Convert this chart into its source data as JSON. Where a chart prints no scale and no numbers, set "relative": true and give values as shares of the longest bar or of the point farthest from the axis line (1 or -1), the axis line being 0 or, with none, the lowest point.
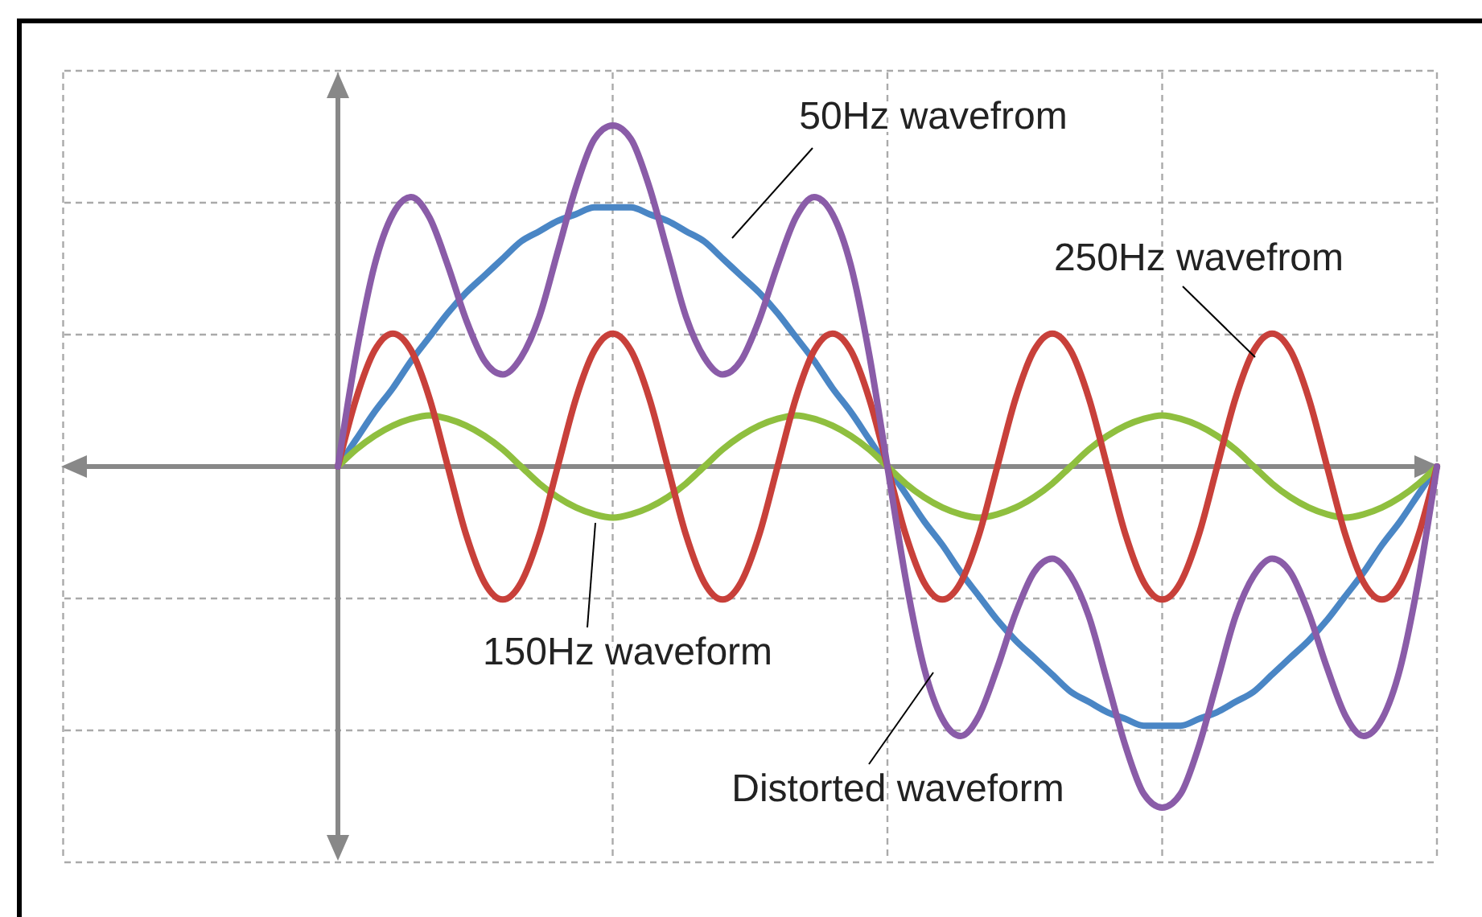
{
  "chart_data": {
    "type": "line",
    "relative": true,
    "grid": true,
    "marker": "none",
    "line_style": "solid",
    "categories": [
      null,
      null,
      null,
      null,
      null,
      null,
      null,
      null,
      null,
      null,
      null,
      null,
      null,
      null,
      null,
      null,
      null,
      null,
      null,
      null,
      null,
      null,
      null,
      null,
      null,
      null,
      null,
      null,
      null,
      null,
      null,
      null,
      null,
      null,
      null,
      null,
      null,
      null,
      null,
      null,
      null,
      null,
      null,
      null,
      null,
      null,
      null,
      null,
      null,
      null,
      null,
      null,
      null,
      null,
      null,
      null,
      null,
      null,
      null,
      null,
      null
    ],
    "series": [
      {
        "name": "50Hz wavefrom",
        "color": "#4a86c5",
        "values": [
          0,
          0.08,
          0.16,
          0.23,
          0.31,
          0.38,
          0.45,
          0.51,
          0.56,
          0.61,
          0.66,
          0.69,
          0.72,
          0.74,
          0.76,
          0.76,
          0.76,
          0.74,
          0.72,
          0.69,
          0.66,
          0.61,
          0.56,
          0.51,
          0.45,
          0.38,
          0.31,
          0.23,
          0.16,
          0.08,
          0,
          -0.08,
          -0.16,
          -0.23,
          -0.31,
          -0.38,
          -0.45,
          -0.51,
          -0.56,
          -0.61,
          -0.66,
          -0.69,
          -0.72,
          -0.74,
          -0.76,
          -0.76,
          -0.76,
          -0.74,
          -0.72,
          -0.69,
          -0.66,
          -0.61,
          -0.56,
          -0.51,
          -0.45,
          -0.38,
          -0.31,
          -0.23,
          -0.16,
          -0.08,
          0
        ]
      },
      {
        "name": "150Hz waveform",
        "color": "#8fbf3f",
        "values": [
          0,
          0.05,
          0.09,
          0.12,
          0.14,
          0.15,
          0.14,
          0.12,
          0.09,
          0.05,
          0,
          -0.05,
          -0.09,
          -0.12,
          -0.14,
          -0.15,
          -0.14,
          -0.12,
          -0.09,
          -0.05,
          0,
          0.05,
          0.09,
          0.12,
          0.14,
          0.15,
          0.14,
          0.12,
          0.09,
          0.05,
          0,
          -0.05,
          -0.09,
          -0.12,
          -0.14,
          -0.15,
          -0.14,
          -0.12,
          -0.09,
          -0.05,
          0,
          0.05,
          0.09,
          0.12,
          0.14,
          0.15,
          0.14,
          0.12,
          0.09,
          0.05,
          0,
          -0.05,
          -0.09,
          -0.12,
          -0.14,
          -0.15,
          -0.14,
          -0.12,
          -0.09,
          -0.05,
          0
        ]
      },
      {
        "name": "250Hz wavefrom",
        "color": "#c8403a",
        "values": [
          0,
          0.2,
          0.34,
          0.39,
          0.34,
          0.2,
          0,
          -0.2,
          -0.34,
          -0.39,
          -0.34,
          -0.2,
          0,
          0.2,
          0.34,
          0.39,
          0.34,
          0.2,
          0,
          -0.2,
          -0.34,
          -0.39,
          -0.34,
          -0.2,
          0,
          0.2,
          0.34,
          0.39,
          0.34,
          0.2,
          0,
          -0.2,
          -0.34,
          -0.39,
          -0.34,
          -0.2,
          0,
          0.2,
          0.34,
          0.39,
          0.34,
          0.2,
          0,
          -0.2,
          -0.34,
          -0.39,
          -0.34,
          -0.2,
          0,
          0.2,
          0.34,
          0.39,
          0.34,
          0.2,
          0,
          -0.2,
          -0.34,
          -0.39,
          -0.34,
          -0.2,
          0
        ]
      },
      {
        "name": "Distorted waveform",
        "color": "#8a5ca8",
        "values": [
          0,
          0.33,
          0.59,
          0.74,
          0.79,
          0.73,
          0.59,
          0.43,
          0.31,
          0.27,
          0.32,
          0.44,
          0.63,
          0.82,
          0.96,
          1,
          0.96,
          0.82,
          0.63,
          0.44,
          0.32,
          0.27,
          0.31,
          0.43,
          0.59,
          0.73,
          0.79,
          0.74,
          0.59,
          0.33,
          0,
          -0.33,
          -0.59,
          -0.74,
          -0.79,
          -0.73,
          -0.59,
          -0.43,
          -0.31,
          -0.27,
          -0.32,
          -0.44,
          -0.63,
          -0.82,
          -0.96,
          -1,
          -0.96,
          -0.82,
          -0.63,
          -0.44,
          -0.32,
          -0.27,
          -0.31,
          -0.43,
          -0.59,
          -0.73,
          -0.79,
          -0.74,
          -0.59,
          -0.33,
          0
        ]
      }
    ]
  }
}
